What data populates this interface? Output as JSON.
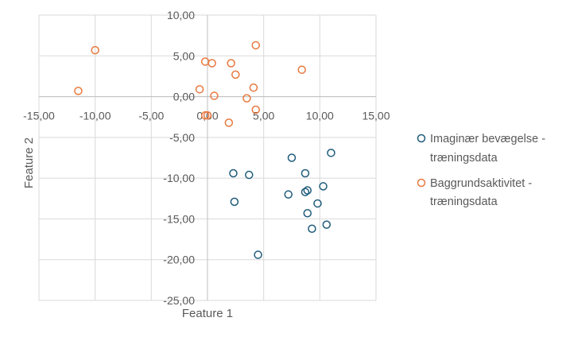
{
  "chart_data": {
    "type": "scatter",
    "title": "",
    "xlabel": "Feature 1",
    "ylabel": "Feature 2",
    "xlim": [
      -15,
      15
    ],
    "ylim": [
      -25,
      10
    ],
    "x_ticks": [
      "-15,00",
      "-10,00",
      "-5,00",
      "0,00",
      "5,00",
      "10,00",
      "15,00"
    ],
    "y_ticks": [
      "10,00",
      "5,00",
      "0,00",
      "-5,00",
      "-10,00",
      "-15,00",
      "-20,00",
      "-25,00"
    ],
    "grid": true,
    "legend_position": "right",
    "series": [
      {
        "name_lines": [
          "Imaginær bevægelse -",
          "træningsdata"
        ],
        "color": "#1f5c7a",
        "points": [
          [
            11.0,
            -6.9
          ],
          [
            7.5,
            -7.5
          ],
          [
            8.7,
            -9.4
          ],
          [
            2.3,
            -9.4
          ],
          [
            3.7,
            -9.6
          ],
          [
            10.3,
            -11.0
          ],
          [
            8.9,
            -11.5
          ],
          [
            8.7,
            -11.7
          ],
          [
            7.2,
            -12.0
          ],
          [
            2.4,
            -12.9
          ],
          [
            9.8,
            -13.1
          ],
          [
            8.9,
            -14.3
          ],
          [
            10.6,
            -15.7
          ],
          [
            9.3,
            -16.2
          ],
          [
            4.5,
            -19.4
          ]
        ]
      },
      {
        "name_lines": [
          "Baggrundsaktivitet -",
          "træningsdata"
        ],
        "color": "#e8793f",
        "points": [
          [
            4.3,
            6.3
          ],
          [
            -10.0,
            5.7
          ],
          [
            -0.2,
            4.3
          ],
          [
            0.4,
            4.1
          ],
          [
            2.1,
            4.1
          ],
          [
            8.4,
            3.3
          ],
          [
            2.5,
            2.7
          ],
          [
            4.1,
            1.1
          ],
          [
            -0.7,
            0.9
          ],
          [
            -11.5,
            0.7
          ],
          [
            0.6,
            0.1
          ],
          [
            3.5,
            -0.2
          ],
          [
            4.3,
            -1.6
          ],
          [
            -0.2,
            -2.3
          ],
          [
            0.0,
            -2.3
          ],
          [
            1.9,
            -3.2
          ]
        ]
      }
    ]
  }
}
